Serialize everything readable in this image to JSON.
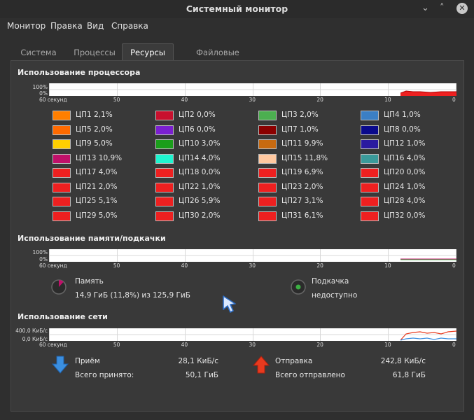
{
  "window": {
    "title": "Системный монитор",
    "minimize": "⌄",
    "maximize": "˄",
    "close": "✕"
  },
  "menu": [
    "Монитор",
    "Правка",
    "Вид",
    "Справка"
  ],
  "tabs": [
    "Система",
    "Процессы",
    "Ресурсы",
    "Файловые системы"
  ],
  "active_tab": "Ресурсы",
  "cpu": {
    "title": "Использование процессора",
    "y_top": "100%",
    "y_bottom": "0%",
    "x_labels": [
      "60 секунд",
      "50",
      "40",
      "30",
      "20",
      "10",
      "0"
    ],
    "items": [
      {
        "label": "ЦП1",
        "value": "2,1%",
        "color": "#ff7f00"
      },
      {
        "label": "ЦП2",
        "value": "0,0%",
        "color": "#c8102e"
      },
      {
        "label": "ЦП3",
        "value": "2,0%",
        "color": "#4caf50"
      },
      {
        "label": "ЦП4",
        "value": "1,0%",
        "color": "#3b7fc4"
      },
      {
        "label": "ЦП5",
        "value": "2,0%",
        "color": "#ff6a00"
      },
      {
        "label": "ЦП6",
        "value": "0,0%",
        "color": "#7b1fd0"
      },
      {
        "label": "ЦП7",
        "value": "1,0%",
        "color": "#8b0000"
      },
      {
        "label": "ЦП8",
        "value": "0,0%",
        "color": "#0a0a8c"
      },
      {
        "label": "ЦП9",
        "value": "5,0%",
        "color": "#ffd000"
      },
      {
        "label": "ЦП10",
        "value": "3,0%",
        "color": "#1a9e1a"
      },
      {
        "label": "ЦП11",
        "value": "9,9%",
        "color": "#c86a10"
      },
      {
        "label": "ЦП12",
        "value": "1,0%",
        "color": "#2a1aa0"
      },
      {
        "label": "ЦП13",
        "value": "10,9%",
        "color": "#c0106a"
      },
      {
        "label": "ЦП14",
        "value": "4,0%",
        "color": "#1ff5d0"
      },
      {
        "label": "ЦП15",
        "value": "11,8%",
        "color": "#ffc8a0"
      },
      {
        "label": "ЦП16",
        "value": "4,0%",
        "color": "#3a9a9a"
      },
      {
        "label": "ЦП17",
        "value": "4,0%",
        "color": "#ee2020"
      },
      {
        "label": "ЦП18",
        "value": "0,0%",
        "color": "#ee2020"
      },
      {
        "label": "ЦП19",
        "value": "6,9%",
        "color": "#ee2020"
      },
      {
        "label": "ЦП20",
        "value": "0,0%",
        "color": "#ee2020"
      },
      {
        "label": "ЦП21",
        "value": "2,0%",
        "color": "#ee2020"
      },
      {
        "label": "ЦП22",
        "value": "1,0%",
        "color": "#ee2020"
      },
      {
        "label": "ЦП23",
        "value": "2,0%",
        "color": "#ee2020"
      },
      {
        "label": "ЦП24",
        "value": "1,0%",
        "color": "#ee2020"
      },
      {
        "label": "ЦП25",
        "value": "5,1%",
        "color": "#ee2020"
      },
      {
        "label": "ЦП26",
        "value": "5,9%",
        "color": "#ee2020"
      },
      {
        "label": "ЦП27",
        "value": "3,1%",
        "color": "#ee2020"
      },
      {
        "label": "ЦП28",
        "value": "4,0%",
        "color": "#ee2020"
      },
      {
        "label": "ЦП29",
        "value": "5,0%",
        "color": "#ee2020"
      },
      {
        "label": "ЦП30",
        "value": "2,0%",
        "color": "#ee2020"
      },
      {
        "label": "ЦП31",
        "value": "6,1%",
        "color": "#ee2020"
      },
      {
        "label": "ЦП32",
        "value": "0,0%",
        "color": "#ee2020"
      }
    ]
  },
  "memory": {
    "title": "Использование памяти/подкачки",
    "y_top": "100%",
    "y_bottom": "0%",
    "x_labels": [
      "60 секунд",
      "50",
      "40",
      "30",
      "20",
      "10",
      "0"
    ],
    "mem_label": "Память",
    "mem_value": "14,9 ГиБ (11,8%) из 125,9 ГиБ",
    "mem_fraction": 0.118,
    "swap_label": "Подкачка",
    "swap_value": "недоступно",
    "mem_color": "#c0106a",
    "swap_color": "#3cb043"
  },
  "network": {
    "title": "Использование сети",
    "y_top": "400,0 КиБ/с",
    "y_bottom": "0,0 КиБ/с",
    "x_labels": [
      "60 секунд",
      "50",
      "40",
      "30",
      "20",
      "10",
      "0"
    ],
    "recv_label": "Приём",
    "recv_rate": "28,1 КиБ/с",
    "recv_total_label": "Всего принято:",
    "recv_total": "50,1 ГиБ",
    "send_label": "Отправка",
    "send_rate": "242,8 КиБ/с",
    "send_total_label": "Всего отправлено",
    "send_total": "61,8 ГиБ",
    "recv_color": "#3b8fe0",
    "send_color": "#e83a1e"
  },
  "icons": {
    "recv": "download-arrow-icon",
    "send": "upload-arrow-icon",
    "cursor": "mouse-cursor-icon"
  }
}
